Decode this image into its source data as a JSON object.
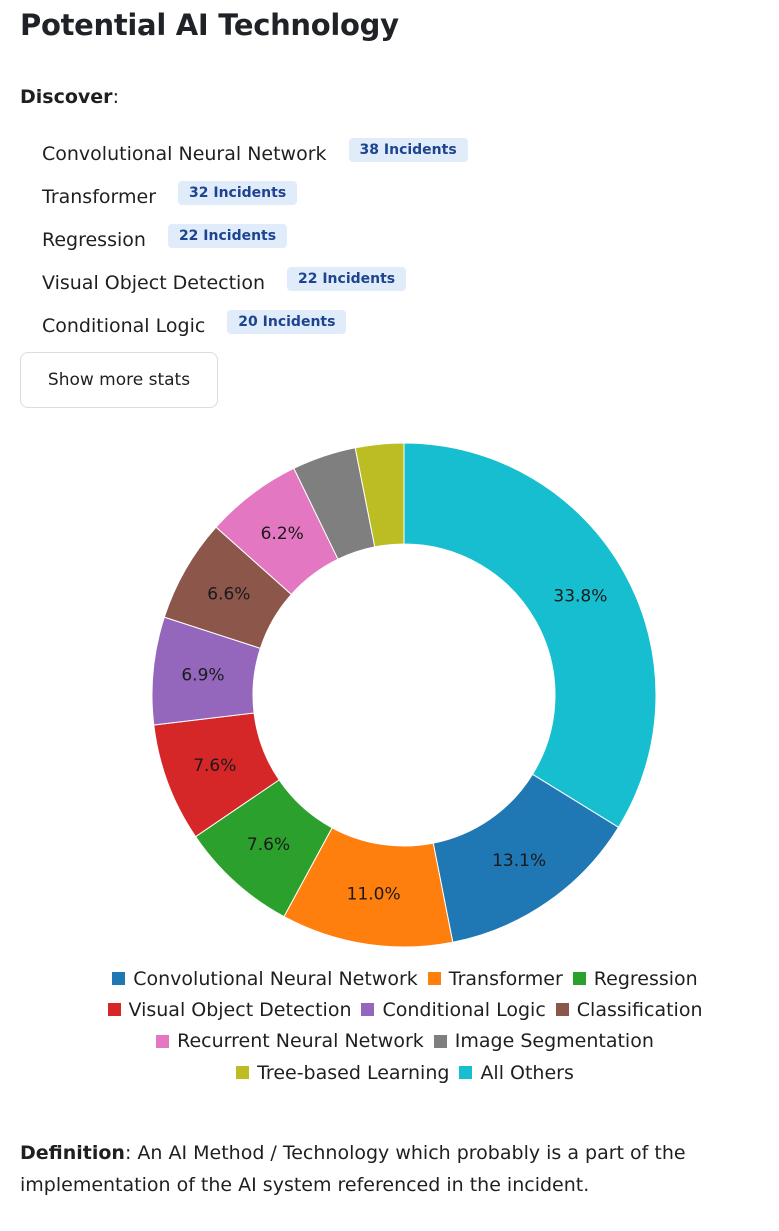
{
  "page": {
    "title": "Potential AI Technology",
    "discover_label": "Discover",
    "discover_suffix": ":"
  },
  "stats": [
    {
      "name": "Convolutional Neural Network",
      "badge": "38 Incidents"
    },
    {
      "name": "Transformer",
      "badge": "32 Incidents"
    },
    {
      "name": "Regression",
      "badge": "22 Incidents"
    },
    {
      "name": "Visual Object Detection",
      "badge": "22 Incidents"
    },
    {
      "name": "Conditional Logic",
      "badge": "20 Incidents"
    }
  ],
  "show_more_label": "Show more stats",
  "chart_data": {
    "type": "pie",
    "donut": true,
    "title": "",
    "start_angle_deg": 0,
    "direction": "clockwise",
    "slices": [
      {
        "label": "All Others",
        "value": 33.8,
        "value_label": "33.8%",
        "color": "#17becf"
      },
      {
        "label": "Convolutional Neural Network",
        "value": 13.1,
        "value_label": "13.1%",
        "color": "#1f77b4"
      },
      {
        "label": "Transformer",
        "value": 11.0,
        "value_label": "11.0%",
        "color": "#ff7f0e"
      },
      {
        "label": "Regression",
        "value": 7.6,
        "value_label": "7.6%",
        "color": "#2ca02c"
      },
      {
        "label": "Visual Object Detection",
        "value": 7.6,
        "value_label": "7.6%",
        "color": "#d62728"
      },
      {
        "label": "Conditional Logic",
        "value": 6.9,
        "value_label": "6.9%",
        "color": "#9467bd"
      },
      {
        "label": "Classification",
        "value": 6.6,
        "value_label": "6.6%",
        "color": "#8c564b"
      },
      {
        "label": "Recurrent Neural Network",
        "value": 6.2,
        "value_label": "6.2%",
        "color": "#e377c2"
      },
      {
        "label": "Image Segmentation",
        "value": 4.1,
        "value_label": "",
        "color": "#7f7f7f"
      },
      {
        "label": "Tree-based Learning",
        "value": 3.1,
        "value_label": "",
        "color": "#bcbd22"
      }
    ],
    "legend": {
      "placement": "bottom",
      "rows": [
        [
          "Convolutional Neural Network",
          "Transformer",
          "Regression"
        ],
        [
          "Visual Object Detection",
          "Conditional Logic",
          "Classification"
        ],
        [
          "Recurrent Neural Network",
          "Image Segmentation"
        ],
        [
          "Tree-based Learning",
          "All Others"
        ]
      ]
    }
  },
  "definition": {
    "label": "Definition",
    "text": ": An AI Method / Technology which probably is a part of the implementation of the AI system referenced in the incident."
  }
}
